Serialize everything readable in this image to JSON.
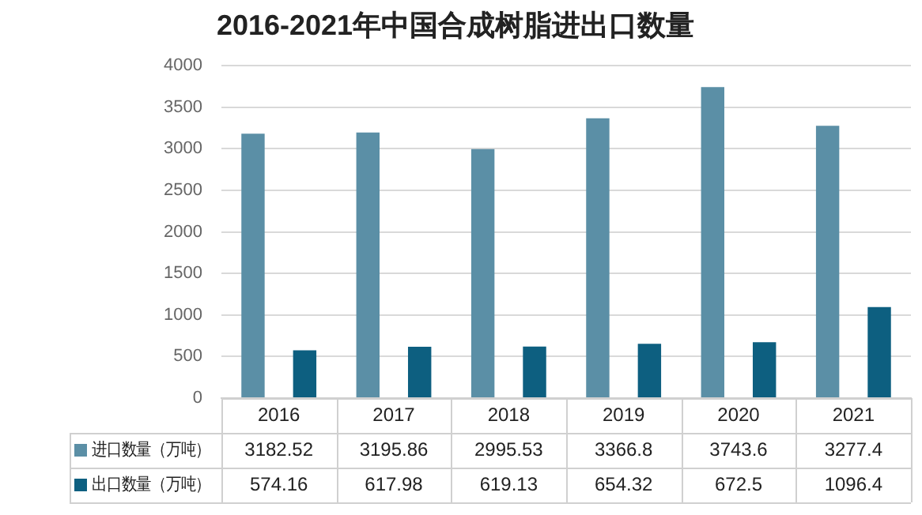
{
  "chart_data": {
    "type": "bar",
    "title": "2016-2021年中国合成树脂进出口数量",
    "categories": [
      "2016",
      "2017",
      "2018",
      "2019",
      "2020",
      "2021"
    ],
    "series": [
      {
        "name": "进口数量（万吨）",
        "color": "#5b8fa6",
        "values": [
          3182.52,
          3195.86,
          2995.53,
          3366.8,
          3743.6,
          3277.4
        ]
      },
      {
        "name": "出口数量（万吨）",
        "color": "#0d5f80",
        "values": [
          574.16,
          617.98,
          619.13,
          654.32,
          672.5,
          1096.4
        ]
      }
    ],
    "ylim": [
      0,
      4000
    ],
    "yticks": [
      0,
      500,
      1000,
      1500,
      2000,
      2500,
      3000,
      3500,
      4000
    ],
    "grid": "y",
    "legend": "bottom",
    "data_labels": true
  }
}
